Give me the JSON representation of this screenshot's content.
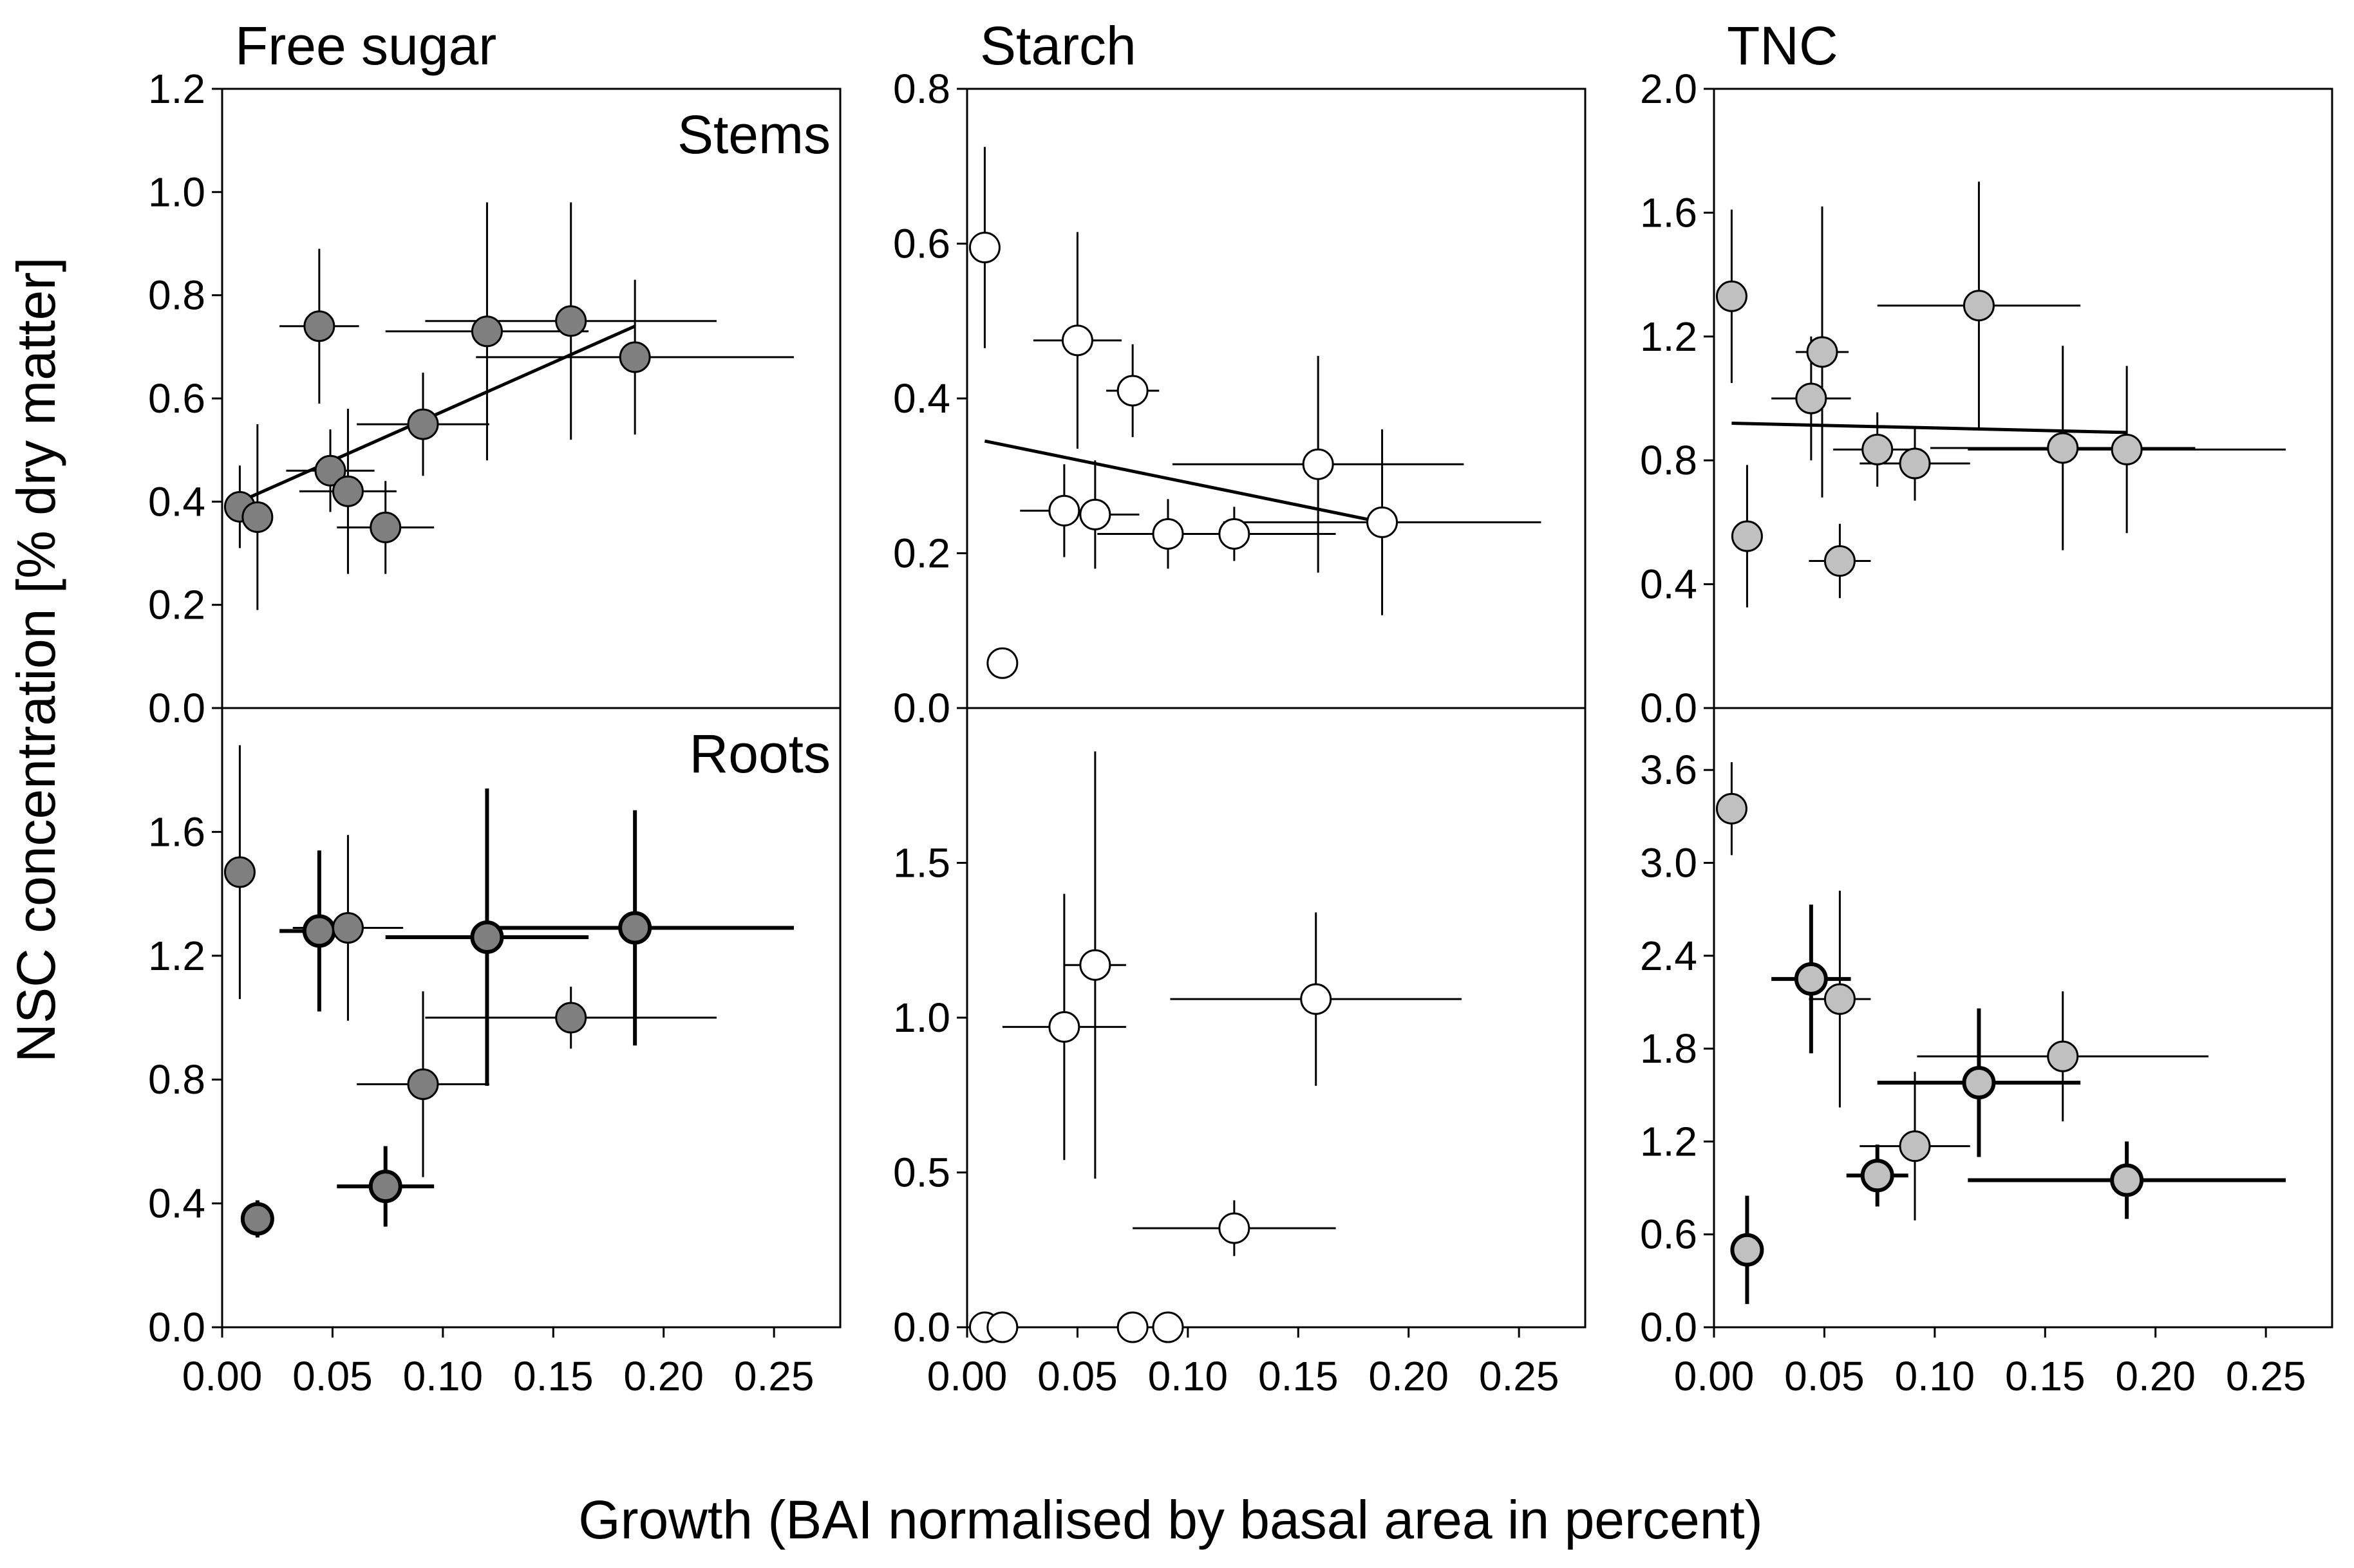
{
  "figure": {
    "xlabel": "Growth (BAI normalised by basal area in percent)",
    "ylabel": "NSC concentration [% dry matter]"
  },
  "colors": {
    "free_sugar_fill": "#7f7f7f",
    "starch_fill": "#ffffff",
    "tnc_fill": "#c0c0c0",
    "line": "#000000"
  },
  "chart_data": [
    {
      "type": "scatter",
      "title": "Free sugar",
      "row_label": "Stems",
      "xlim": [
        0,
        0.28
      ],
      "ylim": [
        0,
        1.2
      ],
      "xticks": [
        "0.00",
        "0.05",
        "0.10",
        "0.15",
        "0.20",
        "0.25"
      ],
      "yticks": [
        "0.0",
        "0.2",
        "0.4",
        "0.6",
        "0.8",
        "1.0",
        "1.2"
      ],
      "fill": "#7f7f7f",
      "points": [
        {
          "x": 0.008,
          "y": 0.39,
          "xerr": 0.003,
          "yerr": 0.08
        },
        {
          "x": 0.016,
          "y": 0.37,
          "xerr": 0.005,
          "yerr": 0.18
        },
        {
          "x": 0.044,
          "y": 0.74,
          "xerr": 0.018,
          "yerr": 0.15
        },
        {
          "x": 0.049,
          "y": 0.46,
          "xerr": 0.02,
          "yerr": 0.08
        },
        {
          "x": 0.057,
          "y": 0.42,
          "xerr": 0.022,
          "yerr": 0.16
        },
        {
          "x": 0.074,
          "y": 0.35,
          "xerr": 0.022,
          "yerr": 0.09
        },
        {
          "x": 0.091,
          "y": 0.55,
          "xerr": 0.03,
          "yerr": 0.1
        },
        {
          "x": 0.12,
          "y": 0.73,
          "xerr": 0.046,
          "yerr": 0.25
        },
        {
          "x": 0.158,
          "y": 0.75,
          "xerr": 0.066,
          "yerr": 0.23
        },
        {
          "x": 0.187,
          "y": 0.68,
          "xerr": 0.072,
          "yerr": 0.15
        }
      ],
      "fit": {
        "x": [
          0.008,
          0.187
        ],
        "y": [
          0.4,
          0.74
        ]
      }
    },
    {
      "type": "scatter",
      "title": "Starch",
      "row_label": "",
      "xlim": [
        0,
        0.28
      ],
      "ylim": [
        0,
        0.8
      ],
      "xticks": [
        "0.00",
        "0.05",
        "0.10",
        "0.15",
        "0.20",
        "0.25"
      ],
      "yticks": [
        "0.0",
        "0.2",
        "0.4",
        "0.6",
        "0.8"
      ],
      "fill": "#ffffff",
      "points": [
        {
          "x": 0.008,
          "y": 0.595,
          "xerr": 0.002,
          "yerr": 0.13
        },
        {
          "x": 0.016,
          "y": 0.058,
          "xerr": 0.006,
          "yerr": 0.02
        },
        {
          "x": 0.044,
          "y": 0.255,
          "xerr": 0.02,
          "yerr": 0.06
        },
        {
          "x": 0.05,
          "y": 0.475,
          "xerr": 0.02,
          "yerr": 0.14
        },
        {
          "x": 0.058,
          "y": 0.25,
          "xerr": 0.02,
          "yerr": 0.07
        },
        {
          "x": 0.075,
          "y": 0.41,
          "xerr": 0.012,
          "yerr": 0.06
        },
        {
          "x": 0.091,
          "y": 0.225,
          "xerr": 0.032,
          "yerr": 0.045
        },
        {
          "x": 0.121,
          "y": 0.225,
          "xerr": 0.046,
          "yerr": 0.035
        },
        {
          "x": 0.159,
          "y": 0.315,
          "xerr": 0.066,
          "yerr": 0.14
        },
        {
          "x": 0.188,
          "y": 0.24,
          "xerr": 0.072,
          "yerr": 0.12
        }
      ],
      "fit": {
        "x": [
          0.008,
          0.188
        ],
        "y": [
          0.345,
          0.24
        ]
      }
    },
    {
      "type": "scatter",
      "title": "TNC",
      "row_label": "",
      "xlim": [
        0,
        0.28
      ],
      "ylim": [
        0,
        2.0
      ],
      "xticks": [
        "0.00",
        "0.05",
        "0.10",
        "0.15",
        "0.20",
        "0.25"
      ],
      "yticks": [
        "0.0",
        "0.4",
        "0.8",
        "1.2",
        "1.6",
        "2.0"
      ],
      "fill": "#c0c0c0",
      "points": [
        {
          "x": 0.008,
          "y": 1.33,
          "xerr": 0.003,
          "yerr": 0.28
        },
        {
          "x": 0.015,
          "y": 0.555,
          "xerr": 0.006,
          "yerr": 0.23
        },
        {
          "x": 0.044,
          "y": 1.0,
          "xerr": 0.018,
          "yerr": 0.2
        },
        {
          "x": 0.049,
          "y": 1.15,
          "xerr": 0.012,
          "yerr": 0.47
        },
        {
          "x": 0.057,
          "y": 0.475,
          "xerr": 0.014,
          "yerr": 0.12
        },
        {
          "x": 0.074,
          "y": 0.835,
          "xerr": 0.02,
          "yerr": 0.12
        },
        {
          "x": 0.091,
          "y": 0.79,
          "xerr": 0.025,
          "yerr": 0.12
        },
        {
          "x": 0.12,
          "y": 1.3,
          "xerr": 0.046,
          "yerr": 0.4
        },
        {
          "x": 0.158,
          "y": 0.84,
          "xerr": 0.06,
          "yerr": 0.33
        },
        {
          "x": 0.187,
          "y": 0.835,
          "xerr": 0.072,
          "yerr": 0.27
        }
      ],
      "fit": {
        "x": [
          0.008,
          0.187
        ],
        "y": [
          0.92,
          0.89
        ]
      }
    },
    {
      "type": "scatter",
      "title": "",
      "row_label": "Roots",
      "xlim": [
        0,
        0.28
      ],
      "ylim": [
        0,
        2.0
      ],
      "xticks": [
        "0.00",
        "0.05",
        "0.10",
        "0.15",
        "0.20",
        "0.25"
      ],
      "yticks": [
        "0.0",
        "0.4",
        "0.8",
        "1.2",
        "1.6"
      ],
      "fill": "#7f7f7f",
      "points": [
        {
          "x": 0.008,
          "y": 1.47,
          "xerr": 0.004,
          "yerr": 0.41,
          "bold": false
        },
        {
          "x": 0.016,
          "y": 0.35,
          "xerr": 0.004,
          "yerr": 0.06,
          "bold": true
        },
        {
          "x": 0.044,
          "y": 1.28,
          "xerr": 0.018,
          "yerr": 0.26,
          "bold": true
        },
        {
          "x": 0.057,
          "y": 1.29,
          "xerr": 0.025,
          "yerr": 0.3,
          "bold": false
        },
        {
          "x": 0.074,
          "y": 0.455,
          "xerr": 0.022,
          "yerr": 0.13,
          "bold": true
        },
        {
          "x": 0.091,
          "y": 0.785,
          "xerr": 0.03,
          "yerr": 0.3,
          "bold": false
        },
        {
          "x": 0.12,
          "y": 1.26,
          "xerr": 0.046,
          "yerr": 0.48,
          "bold": true
        },
        {
          "x": 0.158,
          "y": 1.0,
          "xerr": 0.066,
          "yerr": 0.1,
          "bold": false
        },
        {
          "x": 0.187,
          "y": 1.29,
          "xerr": 0.072,
          "yerr": 0.38,
          "bold": true
        }
      ],
      "fit": null
    },
    {
      "type": "scatter",
      "title": "",
      "row_label": "",
      "xlim": [
        0,
        0.28
      ],
      "ylim": [
        0,
        2.0
      ],
      "xticks": [
        "0.00",
        "0.05",
        "0.10",
        "0.15",
        "0.20",
        "0.25"
      ],
      "yticks": [
        "0.0",
        "0.5",
        "1.0",
        "1.5"
      ],
      "fill": "#ffffff",
      "points": [
        {
          "x": 0.008,
          "y": 0.0,
          "xerr": 0,
          "yerr": 0
        },
        {
          "x": 0.016,
          "y": 0.0,
          "xerr": 0,
          "yerr": 0
        },
        {
          "x": 0.044,
          "y": 0.97,
          "xerr": 0.028,
          "yerr": 0.43
        },
        {
          "x": 0.058,
          "y": 1.17,
          "xerr": 0.014,
          "yerr": 0.69
        },
        {
          "x": 0.075,
          "y": 0.0,
          "xerr": 0,
          "yerr": 0
        },
        {
          "x": 0.091,
          "y": 0.0,
          "xerr": 0,
          "yerr": 0
        },
        {
          "x": 0.121,
          "y": 0.32,
          "xerr": 0.046,
          "yerr": 0.09
        },
        {
          "x": 0.158,
          "y": 1.06,
          "xerr": 0.066,
          "yerr": 0.28
        }
      ],
      "fit": null
    },
    {
      "type": "scatter",
      "title": "",
      "row_label": "",
      "xlim": [
        0,
        0.28
      ],
      "ylim": [
        0,
        4.0
      ],
      "xticks": [
        "0.00",
        "0.05",
        "0.10",
        "0.15",
        "0.20",
        "0.25"
      ],
      "yticks": [
        "0.0",
        "0.6",
        "1.2",
        "1.8",
        "2.4",
        "3.0",
        "3.6"
      ],
      "fill": "#c0c0c0",
      "points": [
        {
          "x": 0.008,
          "y": 3.35,
          "xerr": 0.002,
          "yerr": 0.3,
          "bold": false
        },
        {
          "x": 0.015,
          "y": 0.5,
          "xerr": 0.004,
          "yerr": 0.35,
          "bold": true
        },
        {
          "x": 0.044,
          "y": 2.25,
          "xerr": 0.018,
          "yerr": 0.48,
          "bold": true
        },
        {
          "x": 0.057,
          "y": 2.12,
          "xerr": 0.014,
          "yerr": 0.7,
          "bold": false
        },
        {
          "x": 0.074,
          "y": 0.98,
          "xerr": 0.014,
          "yerr": 0.2,
          "bold": true
        },
        {
          "x": 0.091,
          "y": 1.17,
          "xerr": 0.025,
          "yerr": 0.48,
          "bold": false
        },
        {
          "x": 0.12,
          "y": 1.58,
          "xerr": 0.046,
          "yerr": 0.48,
          "bold": true
        },
        {
          "x": 0.158,
          "y": 1.75,
          "xerr": 0.066,
          "yerr": 0.42,
          "bold": false
        },
        {
          "x": 0.187,
          "y": 0.95,
          "xerr": 0.072,
          "yerr": 0.25,
          "bold": true
        }
      ],
      "fit": null
    }
  ]
}
